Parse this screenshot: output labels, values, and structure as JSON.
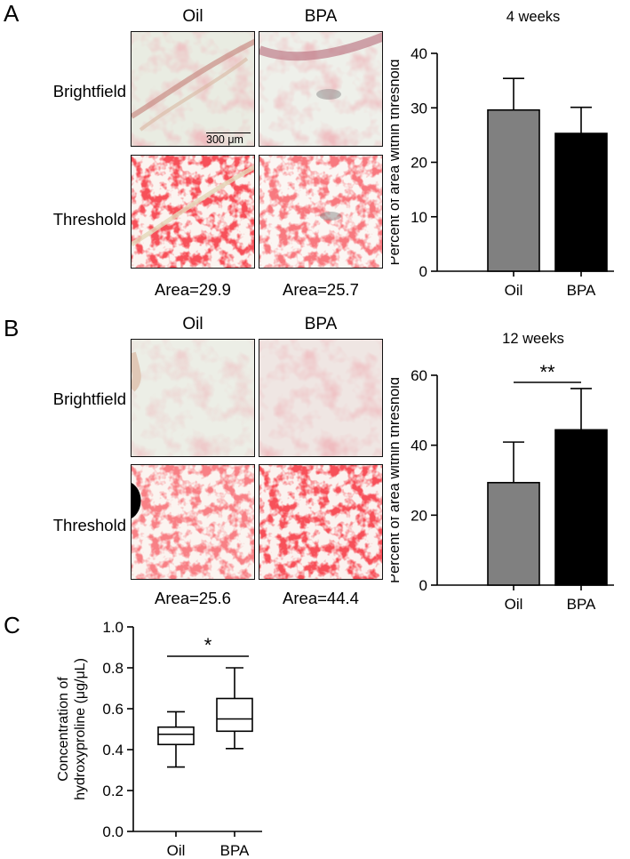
{
  "panels": [
    {
      "letter": "A",
      "columns": [
        "Oil",
        "BPA"
      ],
      "rows": [
        "Brightfield",
        "Threshold"
      ],
      "areas": [
        "Area=29.9",
        "Area=25.7"
      ],
      "scale_bar": "300 μm"
    },
    {
      "letter": "B",
      "columns": [
        "Oil",
        "BPA"
      ],
      "rows": [
        "Brightfield",
        "Threshold"
      ],
      "areas": [
        "Area=25.6",
        "Area=44.4"
      ]
    },
    {
      "letter": "C"
    }
  ],
  "chart_data": [
    {
      "type": "bar",
      "title": "4 weeks",
      "categories": [
        "Oil",
        "BPA"
      ],
      "values": [
        29.6,
        25.3
      ],
      "errors": [
        5.8,
        4.8
      ],
      "ylabel": "Percent of area within threshold",
      "ylim": [
        0,
        40
      ],
      "yticks": [
        0,
        10,
        20,
        30,
        40
      ],
      "colors": [
        "#808080",
        "#000000"
      ],
      "significance": ""
    },
    {
      "type": "bar",
      "title": "12 weeks",
      "categories": [
        "Oil",
        "BPA"
      ],
      "values": [
        29.3,
        44.4
      ],
      "errors": [
        11.6,
        11.8
      ],
      "ylabel": "Percent of area within threshold",
      "ylim": [
        0,
        60
      ],
      "yticks": [
        0,
        20,
        40,
        60
      ],
      "colors": [
        "#808080",
        "#000000"
      ],
      "significance": "**"
    },
    {
      "type": "box",
      "title": "",
      "categories": [
        "Oil",
        "BPA"
      ],
      "boxes": [
        {
          "min": 0.315,
          "q1": 0.425,
          "median": 0.475,
          "q3": 0.51,
          "max": 0.585
        },
        {
          "min": 0.405,
          "q1": 0.49,
          "median": 0.55,
          "q3": 0.65,
          "max": 0.8
        }
      ],
      "ylabel": "Concentration of hydroxyproline (μg/μL)",
      "ylabel_lines": [
        "Concentration of",
        "hydroxyproline (μg/μL)"
      ],
      "ylim": [
        0.0,
        1.0
      ],
      "yticks": [
        "0.0",
        "0.2",
        "0.4",
        "0.6",
        "0.8",
        "1.0"
      ],
      "significance": "*"
    }
  ]
}
